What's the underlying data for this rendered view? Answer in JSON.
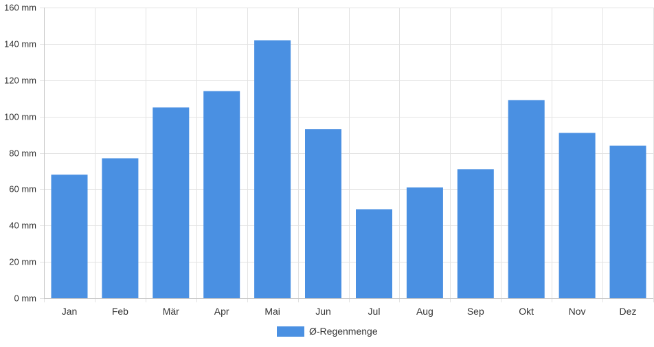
{
  "chart_data": {
    "type": "bar",
    "categories": [
      "Jan",
      "Feb",
      "Mär",
      "Apr",
      "Mai",
      "Jun",
      "Jul",
      "Aug",
      "Sep",
      "Okt",
      "Nov",
      "Dez"
    ],
    "series": [
      {
        "name": "Ø-Regenmenge",
        "values": [
          68,
          77,
          105,
          114,
          142,
          93,
          49,
          61,
          71,
          109,
          91,
          84
        ],
        "color": "#4a90e2"
      }
    ],
    "y_ticks": [
      "0 mm",
      "20 mm",
      "40 mm",
      "60 mm",
      "80 mm",
      "100 mm",
      "120 mm",
      "140 mm",
      "160 mm"
    ],
    "ylim": [
      0,
      160
    ],
    "grid": true,
    "legend_position": "bottom-center"
  }
}
